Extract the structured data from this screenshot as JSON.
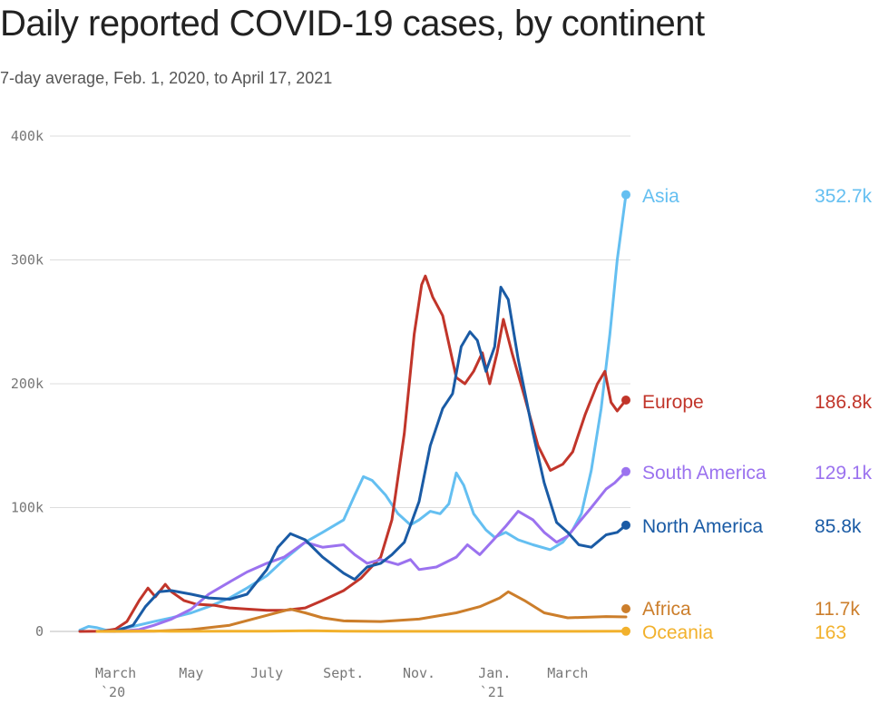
{
  "header": {
    "title": "Daily reported COVID-19 cases, by continent",
    "subtitle": "7-day average, Feb. 1, 2020, to April 17, 2021"
  },
  "chart_data": {
    "type": "line",
    "title": "Daily reported COVID-19 cases, by continent",
    "subtitle": "7-day average, Feb. 1, 2020, to April 17, 2021",
    "xlabel": "",
    "ylabel": "",
    "xlim": [
      "2020-02-01",
      "2021-04-17"
    ],
    "ylim": [
      0,
      400000
    ],
    "grid": true,
    "legend": "direct labels at right",
    "y_ticks": [
      {
        "value": 0,
        "label": "0"
      },
      {
        "value": 100000,
        "label": "100k"
      },
      {
        "value": 200000,
        "label": "200k"
      },
      {
        "value": 300000,
        "label": "300k"
      },
      {
        "value": 400000,
        "label": "400k"
      }
    ],
    "x_ticks": [
      {
        "date": "2020-03-01",
        "label": "March",
        "sub": "`20"
      },
      {
        "date": "2020-05-01",
        "label": "May",
        "sub": ""
      },
      {
        "date": "2020-07-01",
        "label": "July",
        "sub": ""
      },
      {
        "date": "2020-09-01",
        "label": "Sept.",
        "sub": ""
      },
      {
        "date": "2020-11-01",
        "label": "Nov.",
        "sub": ""
      },
      {
        "date": "2021-01-01",
        "label": "Jan.",
        "sub": "`21"
      },
      {
        "date": "2021-03-01",
        "label": "March",
        "sub": ""
      }
    ],
    "series": [
      {
        "name": "Asia",
        "color": "#64bff1",
        "last_label": "352.7k",
        "points": [
          [
            "2020-02-01",
            1000
          ],
          [
            "2020-02-08",
            4000
          ],
          [
            "2020-02-15",
            3000
          ],
          [
            "2020-02-22",
            1000
          ],
          [
            "2020-03-01",
            1500
          ],
          [
            "2020-03-15",
            4000
          ],
          [
            "2020-04-01",
            8000
          ],
          [
            "2020-04-15",
            11000
          ],
          [
            "2020-05-01",
            15000
          ],
          [
            "2020-05-15",
            20000
          ],
          [
            "2020-06-01",
            27000
          ],
          [
            "2020-06-15",
            35000
          ],
          [
            "2020-07-01",
            45000
          ],
          [
            "2020-07-15",
            58000
          ],
          [
            "2020-08-01",
            72000
          ],
          [
            "2020-08-15",
            80000
          ],
          [
            "2020-09-01",
            90000
          ],
          [
            "2020-09-10",
            110000
          ],
          [
            "2020-09-17",
            125000
          ],
          [
            "2020-09-24",
            122000
          ],
          [
            "2020-10-05",
            110000
          ],
          [
            "2020-10-15",
            95000
          ],
          [
            "2020-10-25",
            86000
          ],
          [
            "2020-11-01",
            90000
          ],
          [
            "2020-11-10",
            97000
          ],
          [
            "2020-11-18",
            95000
          ],
          [
            "2020-11-25",
            103000
          ],
          [
            "2020-12-01",
            128000
          ],
          [
            "2020-12-07",
            118000
          ],
          [
            "2020-12-15",
            95000
          ],
          [
            "2020-12-25",
            82000
          ],
          [
            "2021-01-01",
            76000
          ],
          [
            "2021-01-10",
            80000
          ],
          [
            "2021-01-20",
            74000
          ],
          [
            "2021-02-01",
            70000
          ],
          [
            "2021-02-15",
            66000
          ],
          [
            "2021-02-25",
            72000
          ],
          [
            "2021-03-05",
            82000
          ],
          [
            "2021-03-12",
            95000
          ],
          [
            "2021-03-20",
            130000
          ],
          [
            "2021-03-28",
            180000
          ],
          [
            "2021-04-04",
            240000
          ],
          [
            "2021-04-10",
            300000
          ],
          [
            "2021-04-17",
            352700
          ]
        ]
      },
      {
        "name": "Europe",
        "color": "#c1352a",
        "last_label": "186.8k",
        "points": [
          [
            "2020-02-01",
            0
          ],
          [
            "2020-02-20",
            200
          ],
          [
            "2020-03-01",
            2000
          ],
          [
            "2020-03-10",
            8000
          ],
          [
            "2020-03-20",
            25000
          ],
          [
            "2020-03-27",
            35000
          ],
          [
            "2020-04-02",
            28000
          ],
          [
            "2020-04-10",
            38000
          ],
          [
            "2020-04-15",
            32000
          ],
          [
            "2020-04-25",
            25000
          ],
          [
            "2020-05-05",
            22000
          ],
          [
            "2020-05-20",
            21000
          ],
          [
            "2020-06-01",
            19000
          ],
          [
            "2020-06-15",
            18000
          ],
          [
            "2020-07-01",
            17000
          ],
          [
            "2020-07-15",
            17000
          ],
          [
            "2020-08-01",
            19000
          ],
          [
            "2020-08-15",
            25000
          ],
          [
            "2020-09-01",
            33000
          ],
          [
            "2020-09-15",
            43000
          ],
          [
            "2020-10-01",
            60000
          ],
          [
            "2020-10-10",
            90000
          ],
          [
            "2020-10-20",
            160000
          ],
          [
            "2020-10-28",
            240000
          ],
          [
            "2020-11-03",
            280000
          ],
          [
            "2020-11-06",
            287000
          ],
          [
            "2020-11-12",
            270000
          ],
          [
            "2020-11-20",
            255000
          ],
          [
            "2020-12-01",
            205000
          ],
          [
            "2020-12-08",
            200000
          ],
          [
            "2020-12-15",
            210000
          ],
          [
            "2020-12-22",
            225000
          ],
          [
            "2020-12-28",
            200000
          ],
          [
            "2021-01-03",
            225000
          ],
          [
            "2021-01-08",
            252000
          ],
          [
            "2021-01-15",
            225000
          ],
          [
            "2021-01-25",
            190000
          ],
          [
            "2021-02-05",
            150000
          ],
          [
            "2021-02-15",
            130000
          ],
          [
            "2021-02-25",
            135000
          ],
          [
            "2021-03-05",
            145000
          ],
          [
            "2021-03-15",
            175000
          ],
          [
            "2021-03-25",
            200000
          ],
          [
            "2021-03-31",
            210000
          ],
          [
            "2021-04-05",
            185000
          ],
          [
            "2021-04-10",
            178000
          ],
          [
            "2021-04-17",
            186800
          ]
        ]
      },
      {
        "name": "South America",
        "color": "#9b72ef",
        "last_label": "129.1k",
        "points": [
          [
            "2020-02-15",
            0
          ],
          [
            "2020-03-01",
            0
          ],
          [
            "2020-03-20",
            1500
          ],
          [
            "2020-04-01",
            5000
          ],
          [
            "2020-04-15",
            10000
          ],
          [
            "2020-05-01",
            18000
          ],
          [
            "2020-05-15",
            30000
          ],
          [
            "2020-06-01",
            40000
          ],
          [
            "2020-06-15",
            48000
          ],
          [
            "2020-07-01",
            55000
          ],
          [
            "2020-07-15",
            60000
          ],
          [
            "2020-08-01",
            72000
          ],
          [
            "2020-08-15",
            68000
          ],
          [
            "2020-09-01",
            70000
          ],
          [
            "2020-09-10",
            62000
          ],
          [
            "2020-09-20",
            55000
          ],
          [
            "2020-10-01",
            58000
          ],
          [
            "2020-10-15",
            54000
          ],
          [
            "2020-10-25",
            58000
          ],
          [
            "2020-11-01",
            50000
          ],
          [
            "2020-11-15",
            52000
          ],
          [
            "2020-12-01",
            60000
          ],
          [
            "2020-12-10",
            70000
          ],
          [
            "2020-12-20",
            62000
          ],
          [
            "2021-01-01",
            75000
          ],
          [
            "2021-01-10",
            85000
          ],
          [
            "2021-01-20",
            97000
          ],
          [
            "2021-02-01",
            90000
          ],
          [
            "2021-02-10",
            80000
          ],
          [
            "2021-02-20",
            72000
          ],
          [
            "2021-03-01",
            77000
          ],
          [
            "2021-03-10",
            88000
          ],
          [
            "2021-03-20",
            100000
          ],
          [
            "2021-04-01",
            115000
          ],
          [
            "2021-04-08",
            120000
          ],
          [
            "2021-04-17",
            129100
          ]
        ]
      },
      {
        "name": "North America",
        "color": "#1a5ba5",
        "last_label": "85.8k",
        "points": [
          [
            "2020-02-15",
            0
          ],
          [
            "2020-03-01",
            200
          ],
          [
            "2020-03-15",
            5000
          ],
          [
            "2020-03-25",
            20000
          ],
          [
            "2020-04-05",
            32000
          ],
          [
            "2020-04-15",
            33000
          ],
          [
            "2020-05-01",
            30000
          ],
          [
            "2020-05-15",
            27000
          ],
          [
            "2020-06-01",
            26000
          ],
          [
            "2020-06-15",
            30000
          ],
          [
            "2020-07-01",
            50000
          ],
          [
            "2020-07-10",
            68000
          ],
          [
            "2020-07-20",
            79000
          ],
          [
            "2020-08-01",
            74000
          ],
          [
            "2020-08-15",
            60000
          ],
          [
            "2020-09-01",
            47000
          ],
          [
            "2020-09-10",
            42000
          ],
          [
            "2020-09-20",
            52000
          ],
          [
            "2020-10-01",
            55000
          ],
          [
            "2020-10-10",
            62000
          ],
          [
            "2020-10-20",
            72000
          ],
          [
            "2020-11-01",
            105000
          ],
          [
            "2020-11-10",
            150000
          ],
          [
            "2020-11-20",
            180000
          ],
          [
            "2020-11-28",
            192000
          ],
          [
            "2020-12-05",
            230000
          ],
          [
            "2020-12-12",
            242000
          ],
          [
            "2020-12-18",
            235000
          ],
          [
            "2020-12-25",
            210000
          ],
          [
            "2021-01-01",
            230000
          ],
          [
            "2021-01-06",
            278000
          ],
          [
            "2021-01-12",
            268000
          ],
          [
            "2021-01-20",
            220000
          ],
          [
            "2021-02-01",
            160000
          ],
          [
            "2021-02-10",
            120000
          ],
          [
            "2021-02-20",
            88000
          ],
          [
            "2021-03-01",
            80000
          ],
          [
            "2021-03-10",
            70000
          ],
          [
            "2021-03-20",
            68000
          ],
          [
            "2021-04-01",
            78000
          ],
          [
            "2021-04-10",
            80000
          ],
          [
            "2021-04-17",
            85800
          ]
        ]
      },
      {
        "name": "Africa",
        "color": "#cc7e2b",
        "last_label": "11.7k",
        "points": [
          [
            "2020-02-15",
            0
          ],
          [
            "2020-04-01",
            200
          ],
          [
            "2020-05-01",
            1500
          ],
          [
            "2020-06-01",
            5000
          ],
          [
            "2020-07-01",
            13000
          ],
          [
            "2020-07-20",
            18000
          ],
          [
            "2020-08-01",
            15000
          ],
          [
            "2020-08-15",
            11000
          ],
          [
            "2020-09-01",
            8500
          ],
          [
            "2020-10-01",
            8000
          ],
          [
            "2020-11-01",
            10000
          ],
          [
            "2020-12-01",
            15000
          ],
          [
            "2020-12-20",
            20000
          ],
          [
            "2021-01-05",
            27000
          ],
          [
            "2021-01-12",
            32000
          ],
          [
            "2021-01-25",
            25000
          ],
          [
            "2021-02-10",
            15000
          ],
          [
            "2021-03-01",
            11000
          ],
          [
            "2021-04-01",
            12000
          ],
          [
            "2021-04-17",
            11700
          ]
        ]
      },
      {
        "name": "Oceania",
        "color": "#f2b12c",
        "last_label": "163",
        "points": [
          [
            "2020-02-15",
            0
          ],
          [
            "2020-03-25",
            400
          ],
          [
            "2020-04-15",
            100
          ],
          [
            "2020-07-01",
            200
          ],
          [
            "2020-08-05",
            600
          ],
          [
            "2020-09-01",
            200
          ],
          [
            "2020-10-01",
            100
          ],
          [
            "2021-01-01",
            100
          ],
          [
            "2021-04-17",
            163
          ]
        ]
      }
    ]
  }
}
